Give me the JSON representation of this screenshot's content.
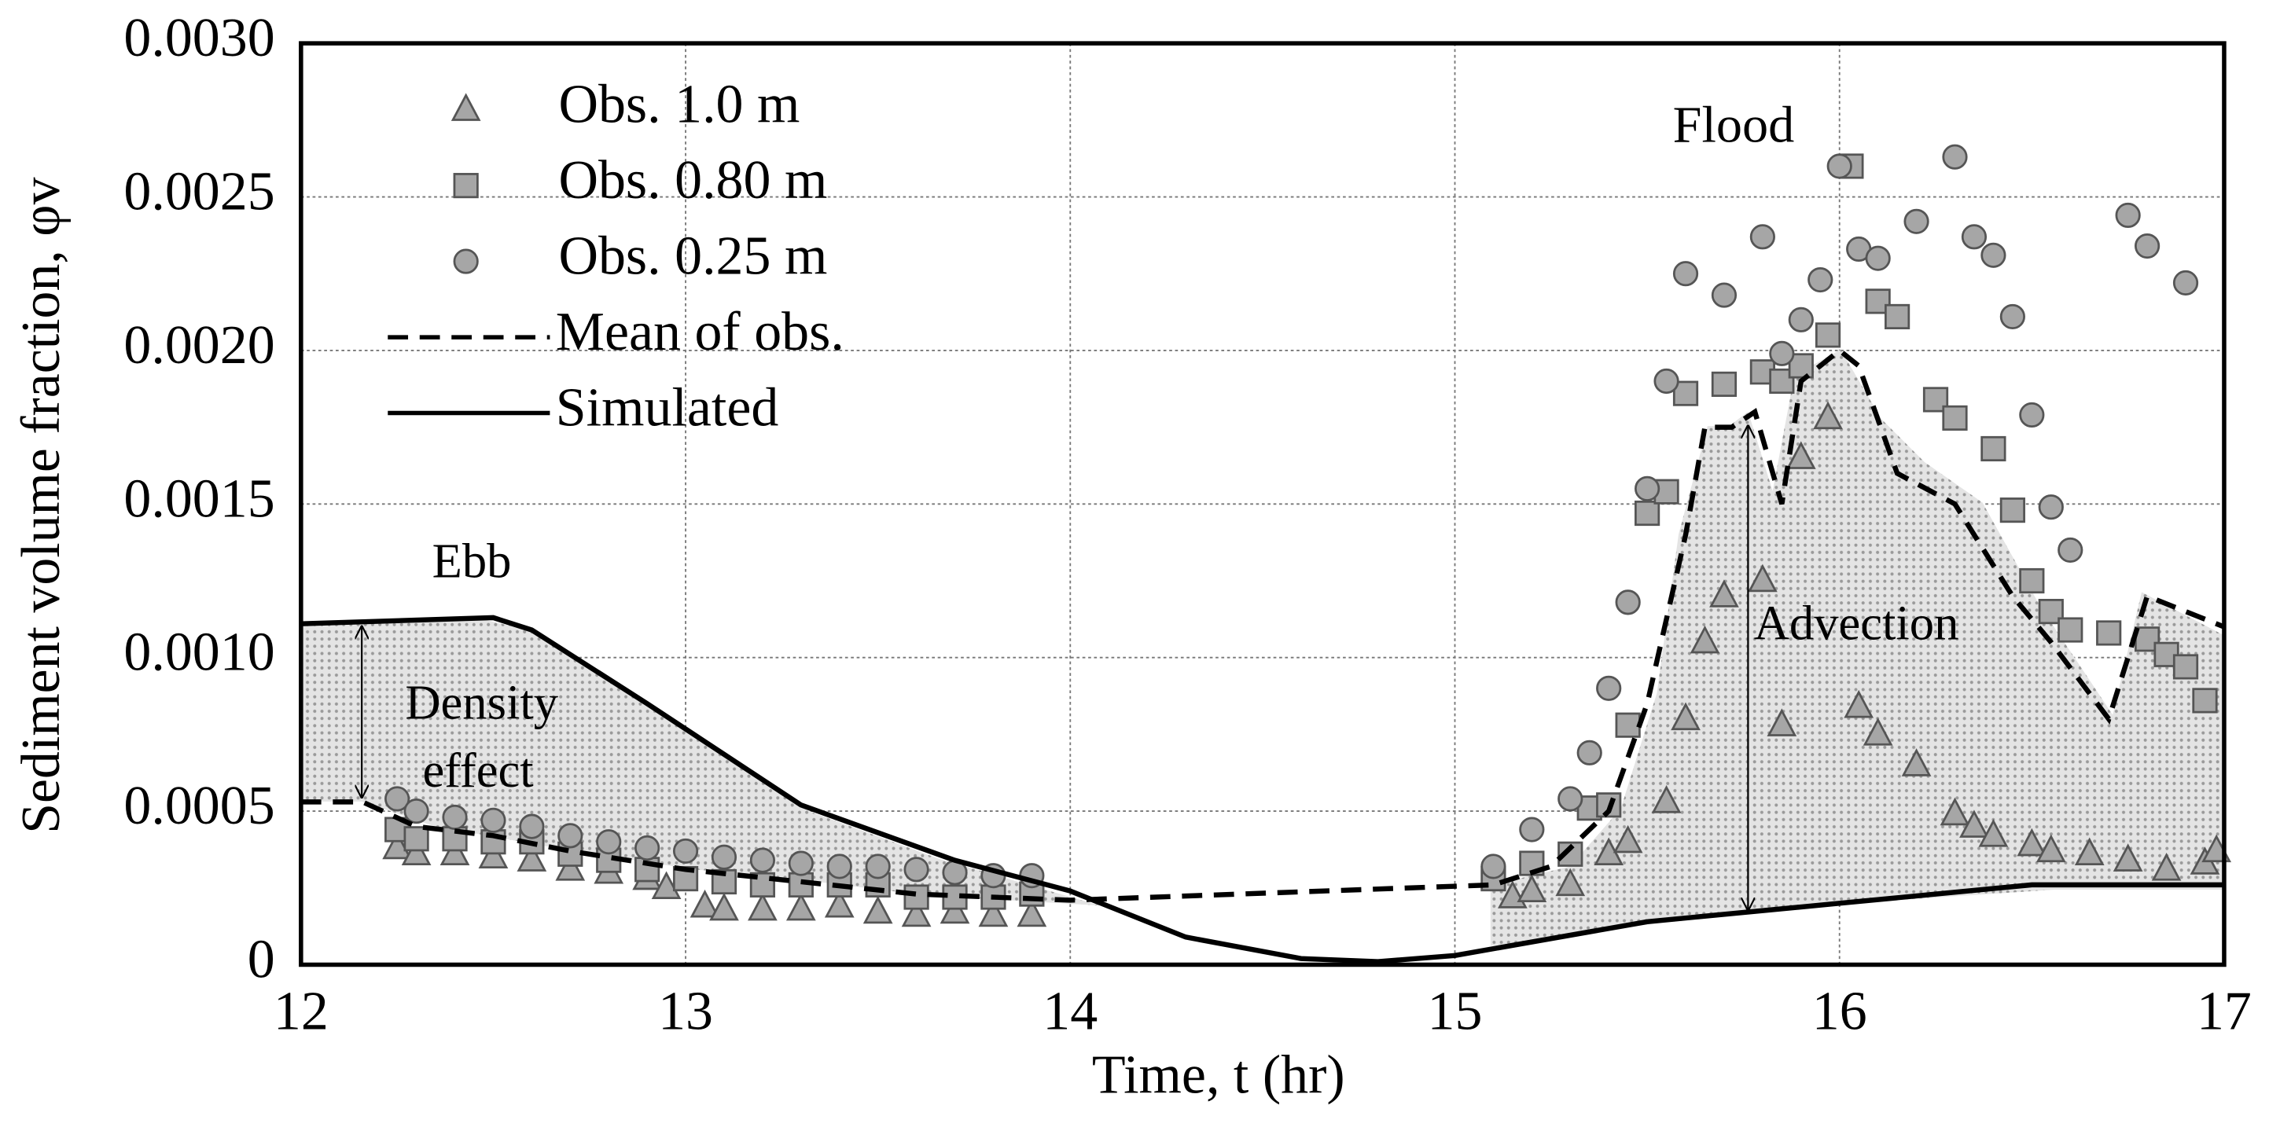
{
  "chart_data": {
    "type": "line",
    "xlabel": "Time, t (hr)",
    "ylabel": "Sediment volume fraction, φv",
    "xlim": [
      12,
      17
    ],
    "ylim": [
      0,
      0.003
    ],
    "xticks": [
      12,
      13,
      14,
      15,
      16,
      17
    ],
    "yticks": [
      0,
      0.0005,
      {
        "value": 0.001,
        "label": "0.0010"
      },
      0.0015,
      {
        "value": 0.002,
        "label": "0.0020"
      },
      0.0025,
      {
        "value": 0.003,
        "label": "0.0030"
      }
    ],
    "grid": true,
    "legend": "upper left",
    "annotations": [
      "Ebb",
      "Flood",
      "Density",
      "effect",
      "Advection"
    ],
    "series": [
      {
        "name": "Obs. 1.0 m",
        "color": "#a6a6a6",
        "marker": "triangle",
        "x": [
          12.25,
          12.3,
          12.4,
          12.5,
          12.6,
          12.7,
          12.8,
          12.9,
          12.95,
          13.05,
          13.1,
          13.2,
          13.3,
          13.4,
          13.5,
          13.6,
          13.7,
          13.8,
          13.9,
          15.15,
          15.2,
          15.3,
          15.4,
          15.45,
          15.55,
          15.6,
          15.65,
          15.7,
          15.8,
          15.85,
          15.9,
          15.97,
          16.05,
          16.1,
          16.2,
          16.3,
          16.35,
          16.4,
          16.5,
          16.55,
          16.65,
          16.75,
          16.85,
          16.95,
          16.98
        ],
        "values": [
          0.00038,
          0.00036,
          0.00036,
          0.00035,
          0.00034,
          0.00031,
          0.0003,
          0.00028,
          0.00025,
          0.00019,
          0.00018,
          0.00018,
          0.00018,
          0.00019,
          0.00017,
          0.00016,
          0.00017,
          0.00016,
          0.00016,
          0.00022,
          0.00024,
          0.00026,
          0.00036,
          0.0004,
          0.00053,
          0.0008,
          0.00105,
          0.0012,
          0.00125,
          0.00078,
          0.00165,
          0.00178,
          0.00084,
          0.00075,
          0.00065,
          0.00049,
          0.00045,
          0.00042,
          0.00039,
          0.00037,
          0.00036,
          0.00034,
          0.00031,
          0.00033,
          0.00037
        ]
      },
      {
        "name": "Obs. 0.80 m",
        "color": "#a6a6a6",
        "marker": "square",
        "x": [
          12.25,
          12.3,
          12.4,
          12.5,
          12.6,
          12.7,
          12.8,
          12.9,
          13.0,
          13.1,
          13.2,
          13.3,
          13.4,
          13.5,
          13.6,
          13.7,
          13.8,
          13.9,
          15.1,
          15.2,
          15.3,
          15.35,
          15.4,
          15.45,
          15.5,
          15.55,
          15.6,
          15.7,
          15.8,
          15.85,
          15.9,
          15.97,
          16.03,
          16.1,
          16.15,
          16.25,
          16.3,
          16.4,
          16.45,
          16.5,
          16.55,
          16.6,
          16.7,
          16.8,
          16.85,
          16.9,
          16.95
        ],
        "values": [
          0.00044,
          0.00041,
          0.00041,
          0.0004,
          0.0004,
          0.00036,
          0.00034,
          0.00031,
          0.00028,
          0.00027,
          0.00026,
          0.00026,
          0.00026,
          0.00026,
          0.00022,
          0.00022,
          0.00022,
          0.00023,
          0.00028,
          0.00033,
          0.00036,
          0.00051,
          0.00052,
          0.00078,
          0.00147,
          0.00154,
          0.00186,
          0.00189,
          0.00193,
          0.0019,
          0.00195,
          0.00205,
          0.0026,
          0.00216,
          0.00211,
          0.00184,
          0.00178,
          0.00168,
          0.00148,
          0.00125,
          0.00115,
          0.00109,
          0.00108,
          0.00106,
          0.00101,
          0.00097,
          0.00086
        ]
      },
      {
        "name": "Obs. 0.25 m",
        "color": "#a6a6a6",
        "marker": "circle",
        "x": [
          12.25,
          12.3,
          12.4,
          12.5,
          12.6,
          12.7,
          12.8,
          12.9,
          13.0,
          13.1,
          13.2,
          13.3,
          13.4,
          13.5,
          13.6,
          13.7,
          13.8,
          13.9,
          15.1,
          15.2,
          15.3,
          15.35,
          15.4,
          15.45,
          15.5,
          15.55,
          15.6,
          15.7,
          15.8,
          15.85,
          15.9,
          15.95,
          16.0,
          16.05,
          16.1,
          16.2,
          16.3,
          16.35,
          16.4,
          16.45,
          16.5,
          16.55,
          16.6,
          16.75,
          16.8,
          16.9
        ],
        "values": [
          0.00054,
          0.0005,
          0.00048,
          0.00047,
          0.00045,
          0.00042,
          0.0004,
          0.00038,
          0.00037,
          0.00035,
          0.00034,
          0.00033,
          0.00032,
          0.00032,
          0.00031,
          0.0003,
          0.00029,
          0.00029,
          0.00032,
          0.00044,
          0.00054,
          0.00069,
          0.0009,
          0.00118,
          0.00155,
          0.0019,
          0.00225,
          0.00218,
          0.00237,
          0.00199,
          0.0021,
          0.00223,
          0.0026,
          0.00233,
          0.0023,
          0.00242,
          0.00263,
          0.00237,
          0.00231,
          0.00211,
          0.00179,
          0.00149,
          0.00135,
          0.00244,
          0.00234,
          0.00222
        ]
      },
      {
        "name": "Mean of obs.",
        "color": "#000000",
        "marker": "none",
        "dash": true,
        "x": [
          12.0,
          12.16,
          12.3,
          12.5,
          12.7,
          13.0,
          13.3,
          13.6,
          14.0,
          15.1,
          15.25,
          15.4,
          15.5,
          15.6,
          15.65,
          15.72,
          15.78,
          15.85,
          15.9,
          16.0,
          16.05,
          16.15,
          16.3,
          16.45,
          16.55,
          16.7,
          16.8,
          17.0
        ],
        "values": [
          0.00053,
          0.00053,
          0.00045,
          0.00042,
          0.00037,
          0.00031,
          0.00027,
          0.00023,
          0.00021,
          0.00026,
          0.00032,
          0.0005,
          0.00085,
          0.0014,
          0.00175,
          0.00175,
          0.0018,
          0.0015,
          0.0019,
          0.002,
          0.00195,
          0.0016,
          0.0015,
          0.0012,
          0.00105,
          0.0008,
          0.0012,
          0.0011
        ]
      },
      {
        "name": "Simulated",
        "color": "#000000",
        "marker": "none",
        "dash": false,
        "x": [
          12.0,
          12.5,
          12.6,
          12.9,
          13.3,
          13.7,
          14.0,
          14.3,
          14.6,
          14.8,
          15.0,
          15.5,
          16.0,
          16.5,
          17.0
        ],
        "values": [
          0.00111,
          0.00113,
          0.00109,
          0.00085,
          0.00052,
          0.00034,
          0.00024,
          9e-05,
          2e-05,
          1e-05,
          3e-05,
          0.00014,
          0.0002,
          0.00026,
          0.00026
        ]
      }
    ]
  }
}
